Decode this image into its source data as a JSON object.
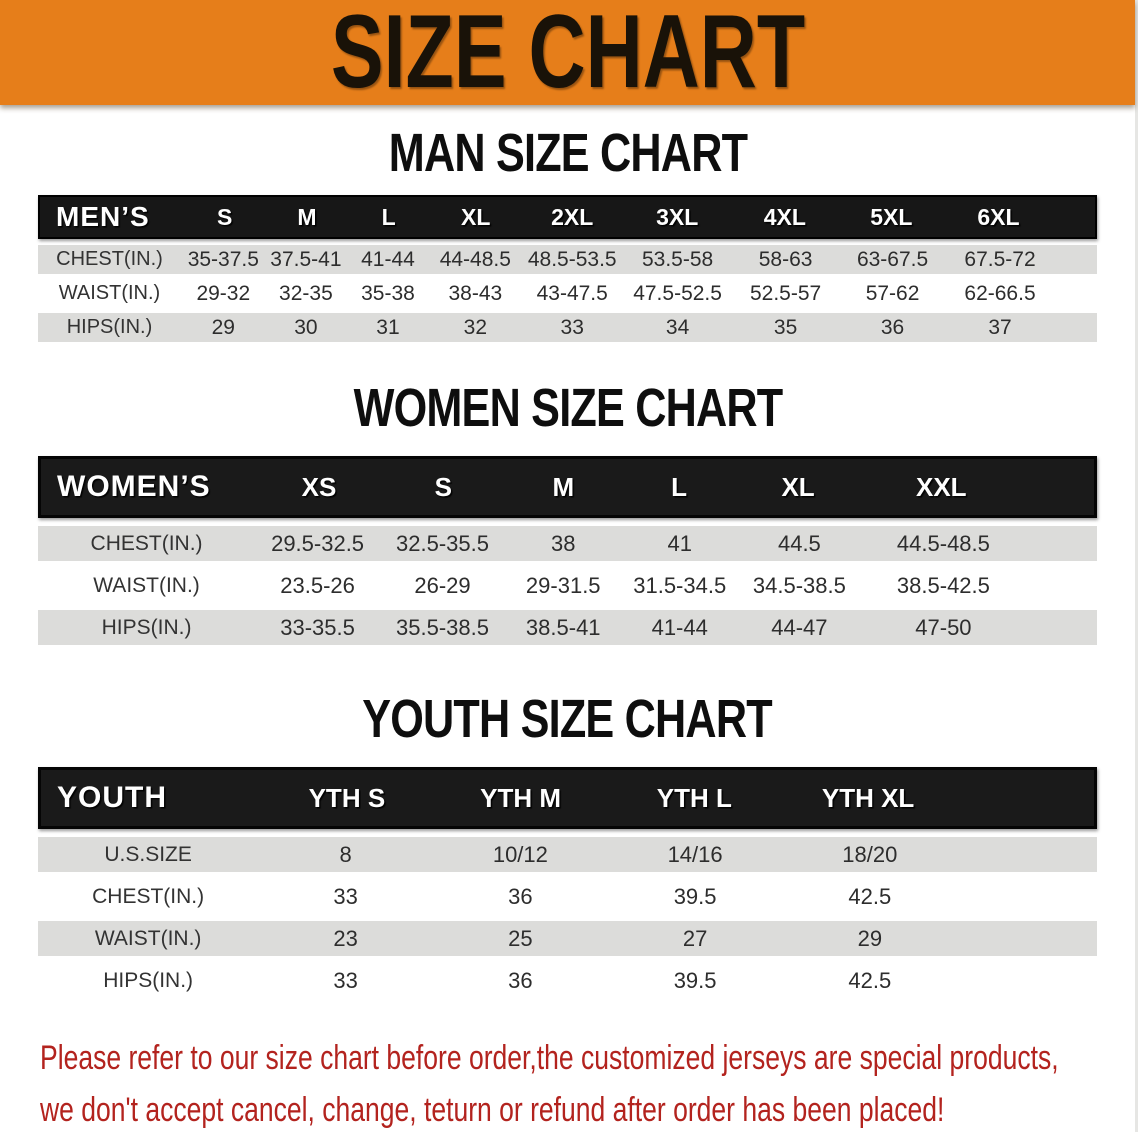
{
  "banner": {
    "title": "SIZE CHART"
  },
  "colors": {
    "banner_orange": "#E67E1A",
    "header_black": "#171717",
    "row_grey": "#DCDCDA",
    "disclaimer_red": "#B3231E"
  },
  "sections": [
    {
      "title": "MAN SIZE CHART",
      "header": {
        "label": "MEN’S",
        "sizes": [
          "S",
          "M",
          "L",
          "XL",
          "2XL",
          "3XL",
          "4XL",
          "5XL",
          "6XL"
        ]
      },
      "rows": [
        {
          "label": "CHEST(IN.)",
          "values": [
            "35-37.5",
            "37.5-41",
            "41-44",
            "44-48.5",
            "48.5-53.5",
            "53.5-58",
            "58-63",
            "63-67.5",
            "67.5-72"
          ]
        },
        {
          "label": "WAIST(IN.)",
          "values": [
            "29-32",
            "32-35",
            "35-38",
            "38-43",
            "43-47.5",
            "47.5-52.5",
            "52.5-57",
            "57-62",
            "62-66.5"
          ]
        },
        {
          "label": "HIPS(IN.)",
          "values": [
            "29",
            "30",
            "31",
            "32",
            "33",
            "34",
            "35",
            "36",
            "37"
          ]
        }
      ]
    },
    {
      "title": "WOMEN SIZE CHART",
      "header": {
        "label": "WOMEN’S",
        "sizes": [
          "XS",
          "S",
          "M",
          "L",
          "XL",
          "XXL"
        ]
      },
      "rows": [
        {
          "label": "CHEST(IN.)",
          "values": [
            "29.5-32.5",
            "32.5-35.5",
            "38",
            "41",
            "44.5",
            "44.5-48.5"
          ]
        },
        {
          "label": "WAIST(IN.)",
          "values": [
            "23.5-26",
            "26-29",
            "29-31.5",
            "31.5-34.5",
            "34.5-38.5",
            "38.5-42.5"
          ]
        },
        {
          "label": "HIPS(IN.)",
          "values": [
            "33-35.5",
            "35.5-38.5",
            "38.5-41",
            "41-44",
            "44-47",
            "47-50"
          ]
        }
      ]
    },
    {
      "title": "YOUTH SIZE CHART",
      "header": {
        "label": "YOUTH",
        "sizes": [
          "YTH S",
          "YTH M",
          "YTH L",
          "YTH XL"
        ]
      },
      "rows": [
        {
          "label": "U.S.SIZE",
          "values": [
            "8",
            "10/12",
            "14/16",
            "18/20"
          ]
        },
        {
          "label": "CHEST(IN.)",
          "values": [
            "33",
            "36",
            "39.5",
            "42.5"
          ]
        },
        {
          "label": "WAIST(IN.)",
          "values": [
            "23",
            "25",
            "27",
            "29"
          ]
        },
        {
          "label": "HIPS(IN.)",
          "values": [
            "33",
            "36",
            "39.5",
            "42.5"
          ]
        }
      ]
    }
  ],
  "disclaimer": {
    "line1": "Please refer to our size chart before order,the customized jerseys are special products,",
    "line2": "we don't accept cancel, change, teturn or refund after order has been placed!"
  }
}
